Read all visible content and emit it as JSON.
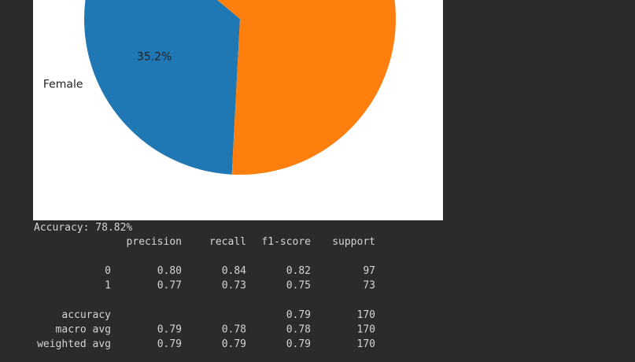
{
  "chart_data": {
    "type": "pie",
    "categories": [
      "Female",
      null
    ],
    "values": [
      35.2,
      64.8
    ],
    "value_labels": [
      "35.2%",
      null
    ],
    "colors": [
      "#1f77b4",
      "#ff7f0e"
    ]
  },
  "output": {
    "accuracy_line": "Accuracy: 78.82%",
    "report": {
      "header": [
        "precision",
        "recall",
        "f1-score",
        "support"
      ],
      "class_rows": [
        [
          "0",
          "0.80",
          "0.84",
          "0.82",
          "97"
        ],
        [
          "1",
          "0.77",
          "0.73",
          "0.75",
          "73"
        ]
      ],
      "avg_rows": [
        [
          "accuracy",
          null,
          null,
          "0.79",
          "170"
        ],
        [
          "macro avg",
          "0.79",
          "0.78",
          "0.78",
          "170"
        ],
        [
          "weighted avg",
          "0.79",
          "0.79",
          "0.79",
          "170"
        ]
      ]
    }
  }
}
